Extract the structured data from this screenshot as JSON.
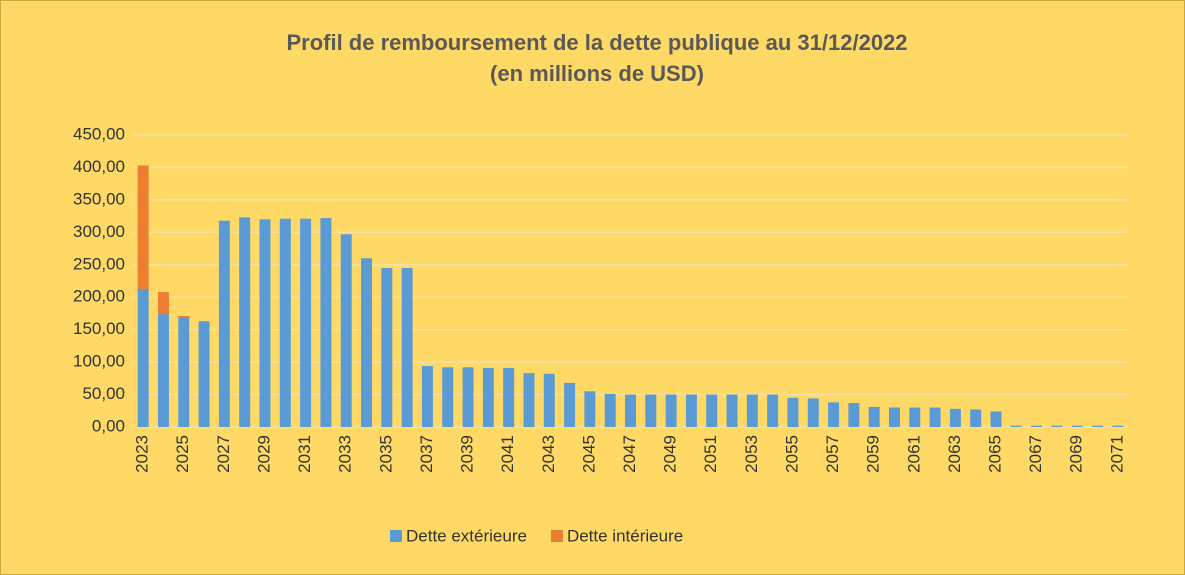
{
  "chart_data": {
    "type": "bar",
    "stacked": true,
    "title": "Profil de remboursement de la dette publique au 31/12/2022",
    "subtitle": "(en millions de USD)",
    "categories": [
      "2023",
      null,
      "2025",
      null,
      "2027",
      null,
      "2029",
      null,
      "2031",
      null,
      "2033",
      null,
      "2035",
      null,
      "2037",
      null,
      "2039",
      null,
      "2041",
      null,
      "2043",
      null,
      "2045",
      null,
      "2047",
      null,
      "2049",
      null,
      "2051",
      null,
      "2053",
      null,
      "2055",
      null,
      "2057",
      null,
      "2059",
      null,
      "2061",
      null,
      "2063",
      null,
      "2065",
      null,
      "2067",
      null,
      "2069",
      null,
      "2071"
    ],
    "series": [
      {
        "name": "Dette extérieure",
        "color": "#5b9bd5",
        "values": [
          213,
          174,
          168,
          163,
          318,
          323,
          320,
          321,
          321,
          322,
          297,
          260,
          245,
          245,
          94,
          92,
          92,
          91,
          91,
          83,
          82,
          68,
          55,
          51,
          50,
          50,
          50,
          50,
          50,
          50,
          50,
          50,
          45,
          44,
          38,
          37,
          31,
          30,
          30,
          30,
          28,
          27,
          24,
          2,
          2,
          2,
          2,
          2,
          2
        ]
      },
      {
        "name": "Dette intérieure",
        "color": "#ed7d31",
        "values": [
          190,
          34,
          3,
          0,
          0,
          0,
          0,
          0,
          0,
          0,
          0,
          0,
          0,
          0,
          0,
          0,
          0,
          0,
          0,
          0,
          0,
          0,
          0,
          0,
          0,
          0,
          0,
          0,
          0,
          0,
          0,
          0,
          0,
          0,
          0,
          0,
          0,
          0,
          0,
          0,
          0,
          0,
          0,
          0,
          0,
          0,
          0,
          0,
          0
        ]
      }
    ],
    "ylim": [
      0,
      450
    ],
    "yticks": [
      {
        "value": 0,
        "label": "0,00"
      },
      {
        "value": 50,
        "label": "50,00"
      },
      {
        "value": 100,
        "label": "100,00"
      },
      {
        "value": 150,
        "label": "150,00"
      },
      {
        "value": 200,
        "label": "200,00"
      },
      {
        "value": 250,
        "label": "250,00"
      },
      {
        "value": 300,
        "label": "300,00"
      },
      {
        "value": 350,
        "label": "350,00"
      },
      {
        "value": 400,
        "label": "400,00"
      },
      {
        "value": 450,
        "label": "450,00"
      }
    ],
    "grid": true,
    "legend": "bottom"
  }
}
